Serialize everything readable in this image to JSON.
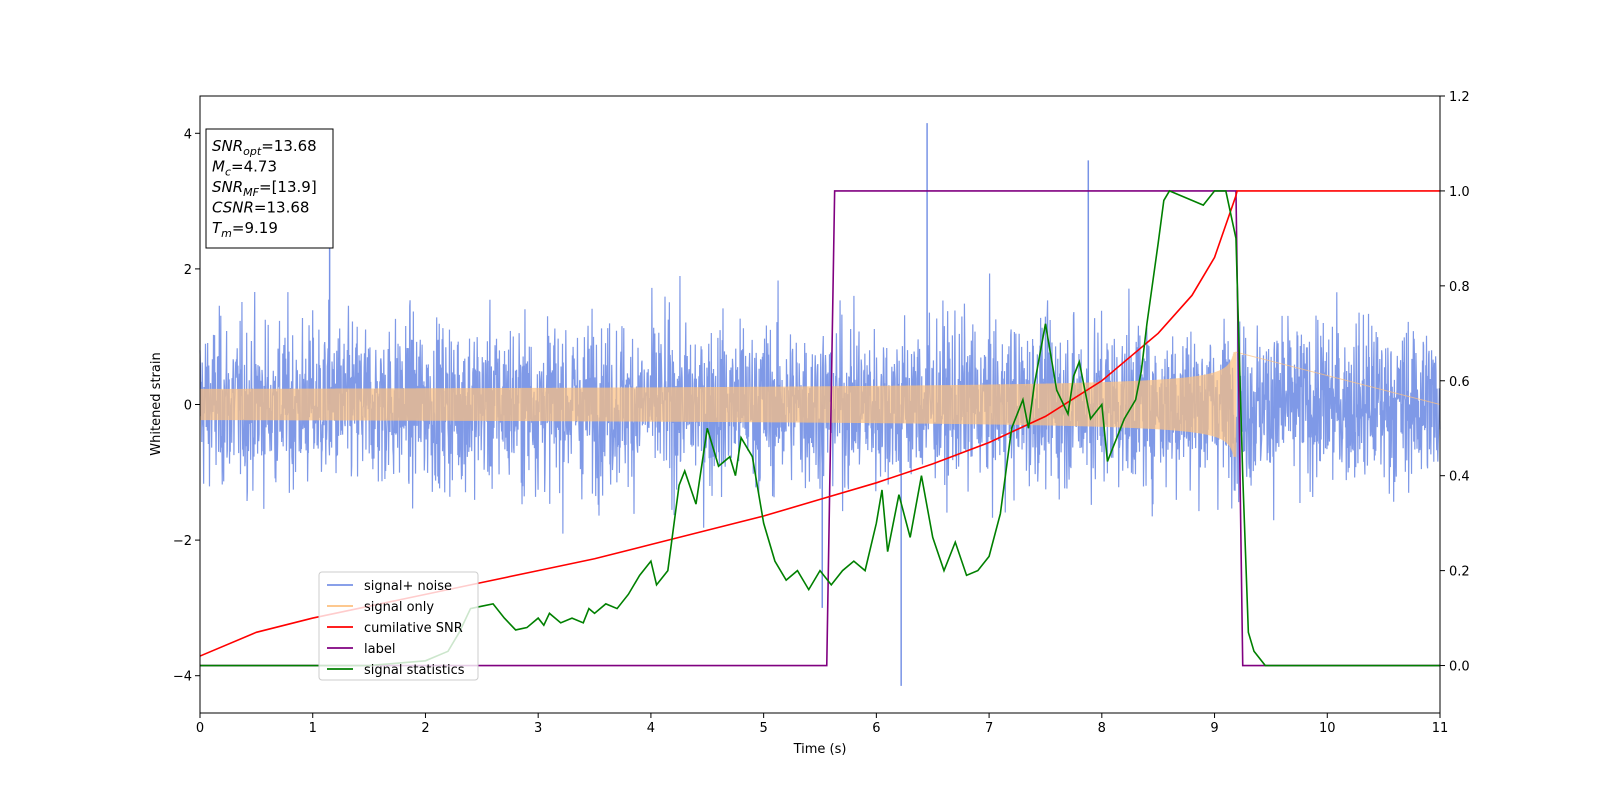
{
  "chart_data": {
    "type": "line",
    "xlabel": "Time (s)",
    "ylabel": "Whitened strain",
    "xlim": [
      0,
      11
    ],
    "ylim": [
      -4.55,
      4.55
    ],
    "y2lim": [
      -0.1,
      1.2
    ],
    "xticks": [
      "0",
      "1",
      "2",
      "3",
      "4",
      "5",
      "6",
      "7",
      "8",
      "9",
      "10",
      "11"
    ],
    "yticks": [
      "4",
      "2",
      "0",
      "−2",
      "−4"
    ],
    "y2ticks": [
      "1.2",
      "1.0",
      "0.8",
      "0.6",
      "0.4",
      "0.2",
      "0.0"
    ],
    "grid": false,
    "legend_placement": "lower-left",
    "info_box": {
      "lines": [
        {
          "sym": "SNR",
          "sub": "opt",
          "value": "=13.68"
        },
        {
          "sym": "M",
          "sub": "c",
          "value": "=4.73"
        },
        {
          "sym": "SNR",
          "sub": "MF",
          "value": "=[13.9]"
        },
        {
          "sym": "CSNR",
          "sub": "",
          "value": "=13.68"
        },
        {
          "sym": "T",
          "sub": "m",
          "value": "=9.19"
        }
      ]
    },
    "series": [
      {
        "name": "signal+ noise",
        "color": "#7893e6",
        "axis": "left",
        "description_of_shape": "whitened noise with amplitude roughly ±2.5, extremes near 4.1 at x=6.45 and -4.15 at x=6.22",
        "noise_band": [
          -2.5,
          2.5
        ]
      },
      {
        "name": "signal only",
        "color": "#fdc07f",
        "axis": "left",
        "chirp_start": 0.0,
        "chirp_end": 9.19,
        "amplitude_start": 0.08,
        "amplitude_end": 0.85
      },
      {
        "name": "cumilative SNR",
        "color": "#ff0000",
        "axis": "right",
        "x": [
          0,
          0.5,
          1,
          1.5,
          2,
          2.5,
          3,
          3.5,
          4,
          4.5,
          5,
          5.5,
          6,
          6.5,
          7,
          7.5,
          8,
          8.5,
          8.8,
          9.0,
          9.19,
          9.2,
          11
        ],
        "y": [
          0.02,
          0.07,
          0.1,
          0.125,
          0.15,
          0.175,
          0.2,
          0.225,
          0.255,
          0.285,
          0.315,
          0.35,
          0.385,
          0.425,
          0.47,
          0.525,
          0.6,
          0.7,
          0.78,
          0.86,
          0.99,
          1.0,
          1.0
        ]
      },
      {
        "name": "label",
        "color": "#800080",
        "axis": "right",
        "x": [
          0,
          5.56,
          5.63,
          9.19,
          9.25,
          11
        ],
        "y": [
          0,
          0,
          1,
          1,
          0,
          0
        ]
      },
      {
        "name": "signal statistics",
        "color": "#008000",
        "axis": "right",
        "x": [
          0,
          0.5,
          1.0,
          1.5,
          2.0,
          2.2,
          2.3,
          2.4,
          2.5,
          2.6,
          2.7,
          2.8,
          2.9,
          3.0,
          3.05,
          3.1,
          3.2,
          3.3,
          3.4,
          3.45,
          3.5,
          3.6,
          3.7,
          3.8,
          3.9,
          4.0,
          4.05,
          4.15,
          4.25,
          4.3,
          4.4,
          4.5,
          4.6,
          4.7,
          4.75,
          4.8,
          4.9,
          5.0,
          5.1,
          5.2,
          5.3,
          5.4,
          5.5,
          5.6,
          5.7,
          5.8,
          5.9,
          6.0,
          6.05,
          6.1,
          6.2,
          6.3,
          6.4,
          6.5,
          6.6,
          6.7,
          6.8,
          6.9,
          7.0,
          7.1,
          7.2,
          7.3,
          7.35,
          7.4,
          7.5,
          7.55,
          7.6,
          7.7,
          7.75,
          7.8,
          7.9,
          8.0,
          8.05,
          8.1,
          8.2,
          8.3,
          8.35,
          8.4,
          8.5,
          8.55,
          8.6,
          8.7,
          8.8,
          8.9,
          9.0,
          9.1,
          9.19,
          9.25,
          9.3,
          9.35,
          9.45,
          9.6,
          10,
          11
        ],
        "y": [
          0.0,
          0.0,
          0.0,
          0.0,
          0.01,
          0.03,
          0.07,
          0.12,
          0.125,
          0.13,
          0.1,
          0.075,
          0.08,
          0.1,
          0.085,
          0.11,
          0.09,
          0.1,
          0.09,
          0.12,
          0.11,
          0.13,
          0.12,
          0.15,
          0.19,
          0.22,
          0.17,
          0.2,
          0.38,
          0.41,
          0.34,
          0.5,
          0.42,
          0.44,
          0.4,
          0.48,
          0.44,
          0.3,
          0.22,
          0.18,
          0.2,
          0.16,
          0.2,
          0.17,
          0.2,
          0.22,
          0.2,
          0.3,
          0.37,
          0.24,
          0.36,
          0.27,
          0.4,
          0.27,
          0.2,
          0.26,
          0.19,
          0.2,
          0.23,
          0.32,
          0.5,
          0.56,
          0.5,
          0.59,
          0.72,
          0.65,
          0.58,
          0.53,
          0.61,
          0.64,
          0.52,
          0.55,
          0.43,
          0.46,
          0.52,
          0.56,
          0.62,
          0.72,
          0.89,
          0.98,
          1.0,
          0.99,
          0.98,
          0.97,
          1.0,
          1.0,
          0.9,
          0.4,
          0.07,
          0.03,
          0.0,
          0.0,
          0.0,
          0.0
        ]
      }
    ]
  }
}
